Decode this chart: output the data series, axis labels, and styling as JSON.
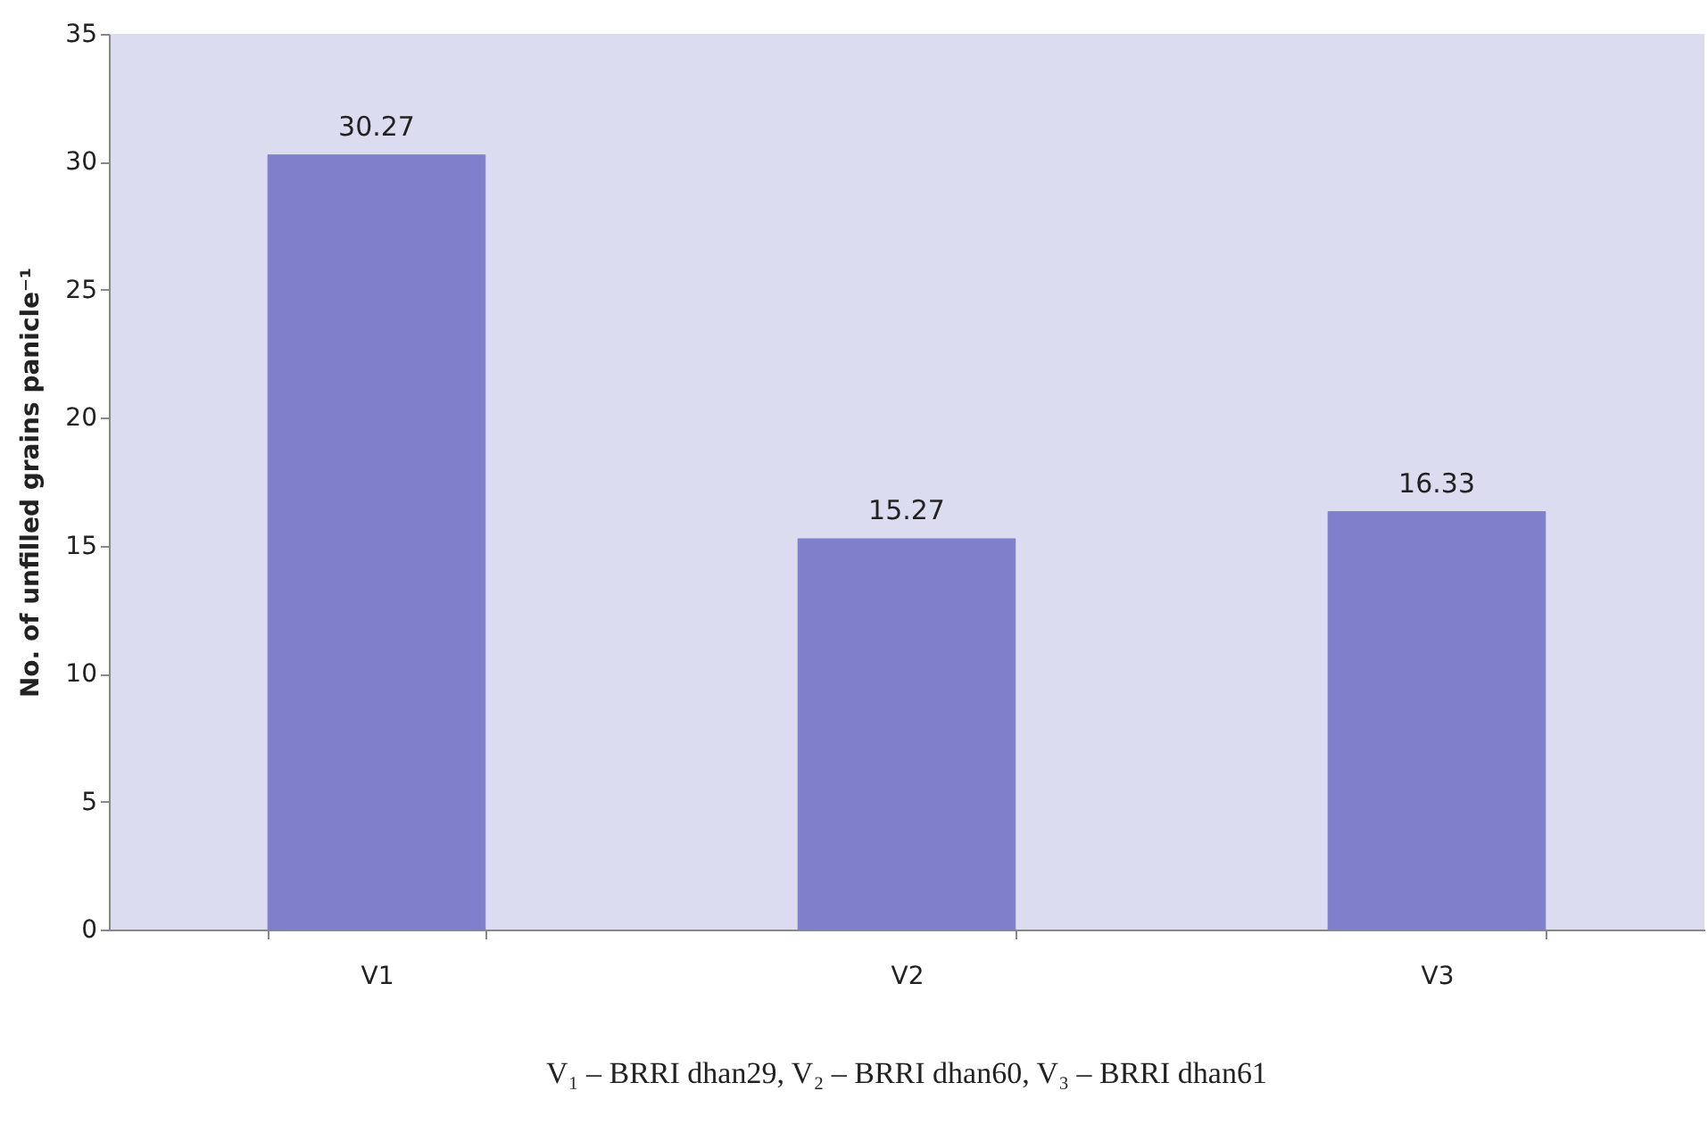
{
  "chart_data": {
    "type": "bar",
    "ylabel": "No. of unfilled grains panicle⁻¹",
    "categories": [
      "V1",
      "V2",
      "V3"
    ],
    "values": [
      30.27,
      15.27,
      16.33
    ],
    "color": "#7f7fcc",
    "ylim": [
      0,
      35
    ],
    "yticks": [
      0,
      5,
      10,
      15,
      20,
      25,
      30,
      35
    ],
    "data_labels": true,
    "annotations": [
      "V₁ – BRRI dhan29, V₂ – BRRI dhan60, V₃ – BRRI dhan61"
    ]
  }
}
